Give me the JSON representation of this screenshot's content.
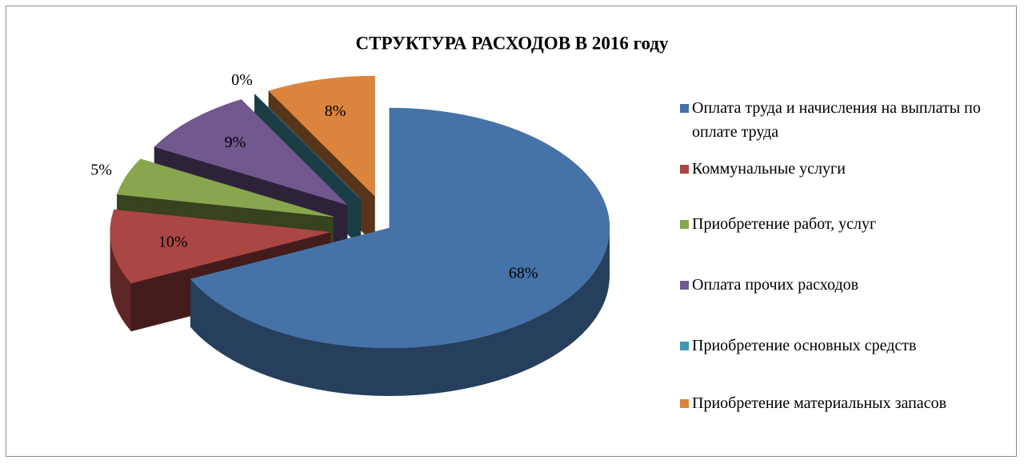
{
  "chart_data": {
    "type": "pie3d",
    "title": "СТРУКТУРА РАСХОДОВ В  2016 году",
    "categories": [
      "Оплата труда и начисления на выплаты по оплате труда",
      "Коммунальные услуги",
      "Приобретение работ, услуг",
      "Оплата прочих расходов",
      "Приобретение основных средств",
      "Приобретение  материальных запасов"
    ],
    "values": [
      68,
      10,
      5,
      9,
      0,
      8
    ],
    "value_labels": [
      "68%",
      "10%",
      "5%",
      "9%",
      "0%",
      "8%"
    ],
    "colors": [
      "#4572a7",
      "#aa4643",
      "#89a54e",
      "#71588f",
      "#4198af",
      "#db843d"
    ],
    "legend": "right"
  }
}
